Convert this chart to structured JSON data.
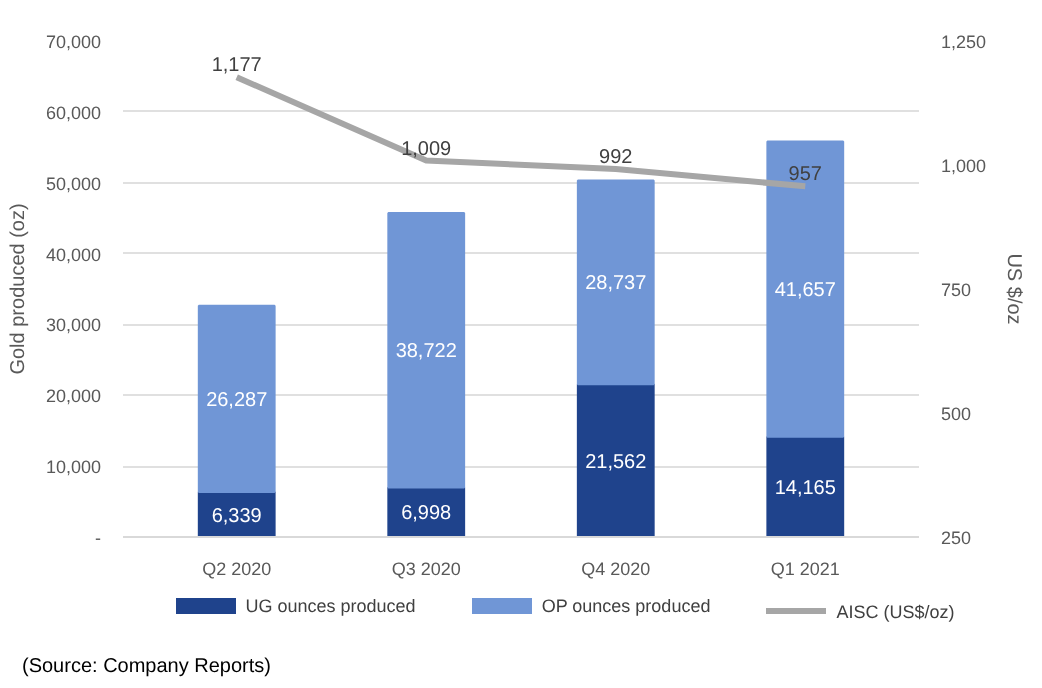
{
  "chart_data": {
    "type": "bar",
    "stacked": true,
    "ylabel": "Gold produced (oz)",
    "y2label": "US $/oz",
    "categories": [
      "Q2 2020",
      "Q3 2020",
      "Q4 2020",
      "Q1 2021"
    ],
    "series": [
      {
        "name": "UG ounces produced",
        "color": "#1f438c",
        "values": [
          6339,
          6998,
          21562,
          14165
        ],
        "value_labels": [
          "6,339",
          "6,998",
          "21,562",
          "14,165"
        ]
      },
      {
        "name": "OP ounces produced",
        "color": "#7096d6",
        "values": [
          26287,
          38722,
          28737,
          41657
        ],
        "value_labels": [
          "26,287",
          "38,722",
          "28,737",
          "41,657"
        ]
      },
      {
        "name": "AISC (US$/oz)",
        "color": "#a6a6a6",
        "type": "line",
        "axis": "y2",
        "values": [
          1177,
          1009,
          992,
          957
        ],
        "value_labels": [
          "1,177",
          "1,009",
          "992",
          "957"
        ]
      }
    ],
    "ylim": [
      0,
      70000
    ],
    "yticks": [
      {
        "value": 0,
        "label": "-"
      },
      {
        "value": 10000,
        "label": "10,000"
      },
      {
        "value": 20000,
        "label": "20,000"
      },
      {
        "value": 30000,
        "label": "30,000"
      },
      {
        "value": 40000,
        "label": "40,000"
      },
      {
        "value": 50000,
        "label": "50,000"
      },
      {
        "value": 60000,
        "label": "60,000"
      },
      {
        "value": 70000,
        "label": "70,000"
      }
    ],
    "y2lim": [
      250,
      1250
    ],
    "y2ticks": [
      {
        "value": 250,
        "label": "250"
      },
      {
        "value": 500,
        "label": "500"
      },
      {
        "value": 750,
        "label": "750"
      },
      {
        "value": 1000,
        "label": "1,000"
      },
      {
        "value": 1250,
        "label": "1,250"
      }
    ],
    "grid": "y",
    "legend": "bottom",
    "marker": "none",
    "line_style": "solid",
    "annotations": [
      "(Source: Company Reports)"
    ]
  }
}
